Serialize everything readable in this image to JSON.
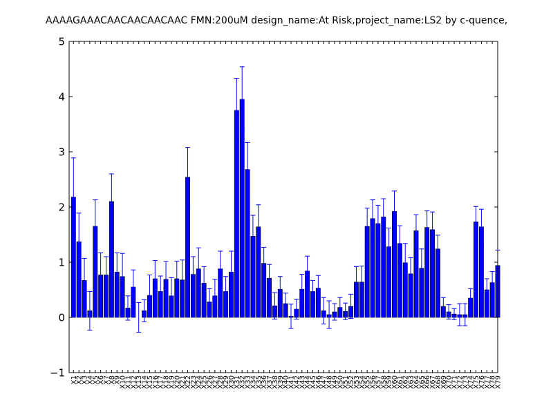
{
  "chart_data": {
    "type": "bar",
    "title": "AAAAGAAACAACAACAACAAC  FMN:200uM  design_name:At Risk,project_name:LS2 by c-quence,",
    "xlabel": "",
    "ylabel": "",
    "ylim": [
      -1,
      5
    ],
    "yticks": [
      "−1",
      "0",
      "1",
      "2",
      "3",
      "4",
      "5"
    ],
    "ytick_values": [
      -1,
      0,
      1,
      2,
      3,
      4,
      5
    ],
    "grid": false,
    "colors": {
      "bar_fill": "#0000ff",
      "bar_edge": "#000000",
      "error_bar": "#0000ff",
      "axes": "#000000",
      "background": "#ffffff"
    },
    "categories": [
      "X1",
      "X2",
      "X3",
      "X4",
      "X5",
      "X6",
      "X7",
      "X8",
      "X9",
      "X10",
      "X11",
      "X12",
      "X13",
      "X14",
      "X15",
      "X16",
      "X17",
      "X18",
      "X19",
      "X20",
      "X21",
      "X22",
      "X23",
      "X24",
      "X25",
      "X26",
      "X27",
      "X28",
      "X29",
      "X30",
      "X31",
      "X32",
      "X33",
      "X34",
      "X35",
      "X36",
      "X37",
      "X38",
      "X39",
      "X40",
      "X41",
      "X42",
      "X43",
      "X44",
      "X45",
      "X46",
      "X47",
      "X48",
      "X49",
      "X50",
      "X51",
      "X52",
      "X53",
      "X54",
      "X55",
      "X56",
      "X57",
      "X58",
      "X59",
      "X60",
      "X61",
      "X62",
      "X63",
      "X64",
      "X65",
      "X66",
      "X67",
      "X68",
      "X69",
      "X70",
      "X71",
      "X72",
      "X73",
      "X74",
      "X75",
      "X76",
      "X77",
      "X78",
      "X79"
    ],
    "values": [
      2.18,
      1.37,
      0.67,
      0.12,
      1.65,
      0.77,
      0.77,
      2.1,
      0.82,
      0.74,
      0.17,
      0.55,
      0.0,
      0.12,
      0.4,
      0.7,
      0.47,
      0.69,
      0.39,
      0.7,
      0.68,
      2.54,
      0.78,
      0.88,
      0.62,
      0.28,
      0.39,
      0.88,
      0.47,
      0.82,
      3.75,
      3.95,
      2.68,
      1.47,
      1.64,
      0.98,
      0.71,
      0.21,
      0.51,
      0.25,
      0.02,
      0.15,
      0.51,
      0.84,
      0.47,
      0.53,
      0.12,
      0.05,
      0.1,
      0.18,
      0.11,
      0.2,
      0.64,
      0.64,
      1.65,
      1.79,
      1.7,
      1.82,
      1.28,
      1.92,
      1.34,
      0.99,
      0.79,
      1.57,
      0.89,
      1.63,
      1.59,
      1.24,
      0.2,
      0.1,
      0.06,
      0.05,
      0.05,
      0.35,
      1.73,
      1.64,
      0.5,
      0.63,
      0.94
    ],
    "errors": [
      0.71,
      0.52,
      0.4,
      0.35,
      0.48,
      0.4,
      0.33,
      0.5,
      0.35,
      0.42,
      0.22,
      0.31,
      0.27,
      0.2,
      0.37,
      0.33,
      0.28,
      0.32,
      0.33,
      0.32,
      0.36,
      0.54,
      0.32,
      0.38,
      0.3,
      0.24,
      0.3,
      0.32,
      0.27,
      0.38,
      0.58,
      0.59,
      0.49,
      0.38,
      0.4,
      0.29,
      0.25,
      0.24,
      0.23,
      0.19,
      0.22,
      0.18,
      0.27,
      0.27,
      0.2,
      0.23,
      0.24,
      0.25,
      0.15,
      0.18,
      0.15,
      0.22,
      0.28,
      0.29,
      0.33,
      0.34,
      0.33,
      0.33,
      0.34,
      0.37,
      0.32,
      0.35,
      0.29,
      0.29,
      0.35,
      0.3,
      0.32,
      0.25,
      0.16,
      0.13,
      0.1,
      0.2,
      0.2,
      0.17,
      0.28,
      0.32,
      0.2,
      0.2,
      0.28
    ]
  }
}
